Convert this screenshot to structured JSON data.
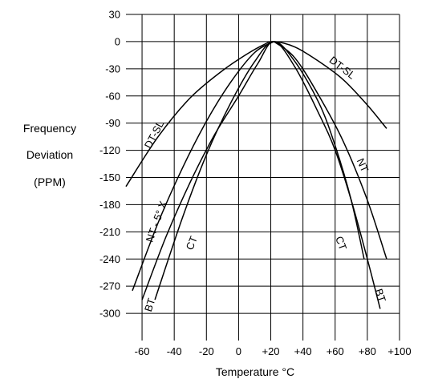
{
  "chart_data": {
    "type": "line",
    "xlabel": "Temperature °C",
    "ylabel": [
      "Frequency",
      "Deviation",
      "(PPM)"
    ],
    "xlim": [
      -70,
      100
    ],
    "ylim": [
      -330,
      30
    ],
    "grid": true,
    "x_ticks": [
      -60,
      -40,
      -20,
      0,
      20,
      40,
      60,
      80,
      100
    ],
    "x_tick_labels": [
      "-60",
      "-40",
      "-20",
      "0",
      "+20",
      "+40",
      "+60",
      "+80",
      "+100"
    ],
    "y_ticks": [
      30,
      0,
      -30,
      -60,
      -90,
      -120,
      -150,
      -180,
      -210,
      -240,
      -270,
      -300
    ],
    "y_tick_labels": [
      "30",
      "0",
      "-30",
      "-60",
      "-90",
      "-120",
      "-150",
      "-180",
      "-210",
      "-240",
      "-270",
      "-300"
    ],
    "series": [
      {
        "name": "DT-SL",
        "x": [
          -70,
          -50,
          -30,
          -10,
          5,
          15,
          22,
          35,
          50,
          65,
          80,
          92
        ],
        "y": [
          -160,
          -105,
          -62,
          -32,
          -14,
          -4,
          0,
          -6,
          -22,
          -42,
          -70,
          -96
        ]
      },
      {
        "name": "NT - 5° X",
        "x": [
          -66,
          -50,
          -35,
          -20,
          -5,
          10,
          22
        ],
        "y": [
          -275,
          -200,
          -140,
          -88,
          -45,
          -12,
          0
        ]
      },
      {
        "name": "BT",
        "x": [
          -60,
          -45,
          -30,
          -15,
          0,
          12,
          22,
          35,
          50,
          60,
          70,
          80,
          88
        ],
        "y": [
          -285,
          -215,
          -155,
          -103,
          -60,
          -24,
          0,
          -28,
          -80,
          -120,
          -175,
          -240,
          -295
        ]
      },
      {
        "name": "CT",
        "x": [
          -52,
          -35,
          -20,
          -5,
          10,
          22,
          35,
          50,
          60,
          70,
          78
        ],
        "y": [
          -285,
          -195,
          -125,
          -68,
          -22,
          0,
          -22,
          -68,
          -115,
          -175,
          -240
        ]
      },
      {
        "name": "NT",
        "x": [
          22,
          35,
          50,
          65,
          80,
          92
        ],
        "y": [
          0,
          -18,
          -60,
          -110,
          -175,
          -240
        ]
      }
    ],
    "curve_labels": [
      {
        "text": "DT-SL"
      },
      {
        "text": "DT-SL"
      },
      {
        "text": "NT - 5° X"
      },
      {
        "text": "CT"
      },
      {
        "text": "BT"
      },
      {
        "text": "CT"
      },
      {
        "text": "NT"
      },
      {
        "text": "BT"
      }
    ]
  }
}
